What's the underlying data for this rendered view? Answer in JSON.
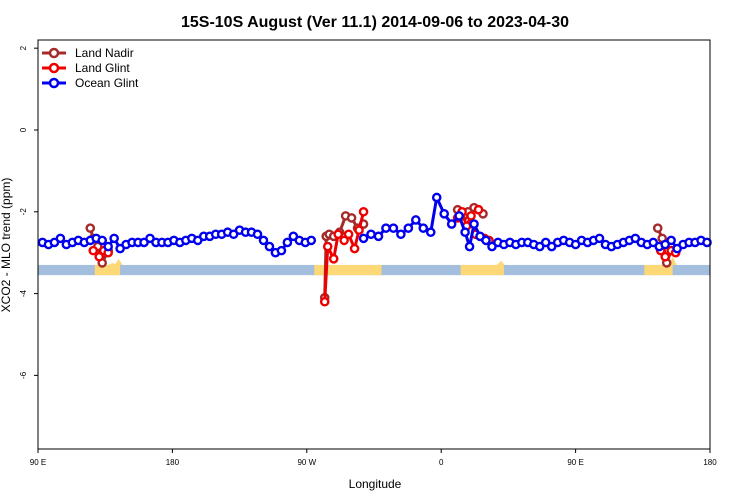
{
  "chart_data": {
    "type": "line",
    "title": "15S-10S August (Ver 11.1)   2014-09-06 to 2023-04-30",
    "xlabel": "Longitude",
    "ylabel": "XCO2 - MLO trend (ppm)",
    "xlim": [
      90,
      450
    ],
    "ylim": [
      -7.8,
      2.2
    ],
    "x_ticks": [
      {
        "value": 90,
        "label": "90 E"
      },
      {
        "value": 180,
        "label": "180"
      },
      {
        "value": 270,
        "label": "90 W"
      },
      {
        "value": 360,
        "label": "0"
      },
      {
        "value": 450,
        "label": "90 E"
      },
      {
        "value": 540,
        "label": "180"
      }
    ],
    "y_ticks": [
      {
        "value": 2,
        "label": "2"
      },
      {
        "value": 0,
        "label": "0"
      },
      {
        "value": -2,
        "label": "-2"
      },
      {
        "value": -4,
        "label": "-4"
      },
      {
        "value": -6,
        "label": "-6"
      }
    ],
    "x_display": {
      "min": 90,
      "max": 540
    },
    "grid": false,
    "legend_position": "top-left",
    "land_mask": {
      "y_top": -3.3,
      "y_bottom": -3.55,
      "ocean_color": "#a4bede",
      "land_color": "#fcd876",
      "land_ranges": [
        [
          128,
          145
        ],
        [
          275,
          320
        ],
        [
          373,
          402
        ],
        [
          496,
          515
        ]
      ],
      "mound_peaks": [
        {
          "x": 144,
          "y": -3.15
        },
        {
          "x": 140,
          "y": -3.25
        },
        {
          "x": 515,
          "y": -3.1
        },
        {
          "x": 400,
          "y": -3.2
        }
      ]
    },
    "series": [
      {
        "name": "Land Nadir",
        "color": "#a52a2a",
        "segments": [
          {
            "x": [
              125,
              127,
              130,
              133,
              137
            ],
            "y": [
              -2.4,
              -2.65,
              -2.85,
              -3.25,
              -2.95
            ]
          },
          {
            "x": [
              282,
              283,
              285,
              288,
              292,
              296,
              300,
              304,
              308
            ],
            "y": [
              -4.1,
              -2.6,
              -2.55,
              -2.6,
              -2.5,
              -2.1,
              -2.15,
              -2.4,
              -2.3
            ]
          },
          {
            "x": [
              371,
              375,
              378,
              382,
              385,
              388
            ],
            "y": [
              -1.95,
              -2.1,
              -2.0,
              -1.9,
              -1.95,
              -2.05
            ]
          },
          {
            "x": [
              505,
              508,
              511,
              514
            ],
            "y": [
              -2.4,
              -2.65,
              -3.25,
              -2.95
            ]
          }
        ]
      },
      {
        "name": "Land Glint",
        "color": "#ee0000",
        "segments": [
          {
            "x": [
              127,
              131,
              134,
              137
            ],
            "y": [
              -2.95,
              -3.1,
              -2.95,
              -3.0
            ]
          },
          {
            "x": [
              282,
              284,
              288,
              291,
              295,
              298,
              302,
              305,
              308
            ],
            "y": [
              -4.2,
              -2.85,
              -3.15,
              -2.55,
              -2.7,
              -2.55,
              -2.9,
              -2.45,
              -2.0
            ]
          },
          {
            "x": [
              371,
              374,
              377,
              380,
              383
            ],
            "y": [
              -2.15,
              -2.0,
              -2.35,
              -2.1,
              -2.55
            ]
          },
          {
            "x": 385,
            "y": -1.95,
            "single": true
          },
          {
            "x": [
              389,
              392
            ],
            "y": [
              -2.65,
              -2.7
            ]
          },
          {
            "x": [
              507,
              510,
              514,
              517
            ],
            "y": [
              -2.95,
              -3.1,
              -2.95,
              -3.0
            ]
          }
        ]
      },
      {
        "name": "Ocean Glint",
        "color": "#0000ee",
        "segments": [
          {
            "x": [
              93,
              97,
              101,
              105,
              109,
              113,
              117,
              121,
              125,
              129,
              133,
              137,
              141,
              145,
              149,
              153,
              157,
              161,
              165,
              169,
              173,
              177,
              181,
              185,
              189,
              193,
              197,
              201,
              205,
              209,
              213,
              217,
              221,
              225,
              229,
              233,
              237,
              241,
              245,
              249,
              253,
              257,
              261,
              265,
              269,
              273
            ],
            "y": [
              -2.75,
              -2.8,
              -2.75,
              -2.65,
              -2.8,
              -2.75,
              -2.7,
              -2.75,
              -2.7,
              -2.65,
              -2.7,
              -2.85,
              -2.65,
              -2.9,
              -2.8,
              -2.75,
              -2.75,
              -2.75,
              -2.65,
              -2.75,
              -2.75,
              -2.75,
              -2.7,
              -2.75,
              -2.7,
              -2.65,
              -2.7,
              -2.6,
              -2.6,
              -2.55,
              -2.55,
              -2.5,
              -2.55,
              -2.45,
              -2.5,
              -2.5,
              -2.55,
              -2.7,
              -2.85,
              -3.0,
              -2.95,
              -2.75,
              -2.6,
              -2.7,
              -2.75,
              -2.7
            ]
          },
          {
            "x": [
              308,
              313,
              318,
              323,
              328,
              333,
              338,
              343,
              348,
              353,
              357,
              362,
              367,
              372,
              376,
              379,
              382,
              386,
              390,
              394,
              398,
              402
            ],
            "y": [
              -2.65,
              -2.55,
              -2.6,
              -2.4,
              -2.4,
              -2.55,
              -2.4,
              -2.2,
              -2.4,
              -2.5,
              -1.65,
              -2.05,
              -2.3,
              -2.1,
              -2.5,
              -2.85,
              -2.3,
              -2.6,
              -2.7,
              -2.85,
              -2.75,
              -2.8
            ]
          },
          {
            "x": [
              406,
              410,
              414,
              418,
              422,
              426,
              430,
              434,
              438,
              442,
              446,
              450,
              454,
              458,
              462,
              466,
              470,
              474,
              478,
              482,
              486,
              490,
              494,
              498,
              502,
              506,
              510,
              514,
              518,
              522,
              526,
              530,
              534,
              538
            ],
            "y": [
              -2.75,
              -2.8,
              -2.75,
              -2.75,
              -2.8,
              -2.85,
              -2.75,
              -2.85,
              -2.75,
              -2.7,
              -2.75,
              -2.8,
              -2.7,
              -2.75,
              -2.7,
              -2.65,
              -2.8,
              -2.85,
              -2.8,
              -2.75,
              -2.7,
              -2.65,
              -2.75,
              -2.8,
              -2.75,
              -2.85,
              -2.8,
              -2.7,
              -2.9,
              -2.8,
              -2.75,
              -2.75,
              -2.7,
              -2.75
            ]
          }
        ]
      }
    ]
  }
}
